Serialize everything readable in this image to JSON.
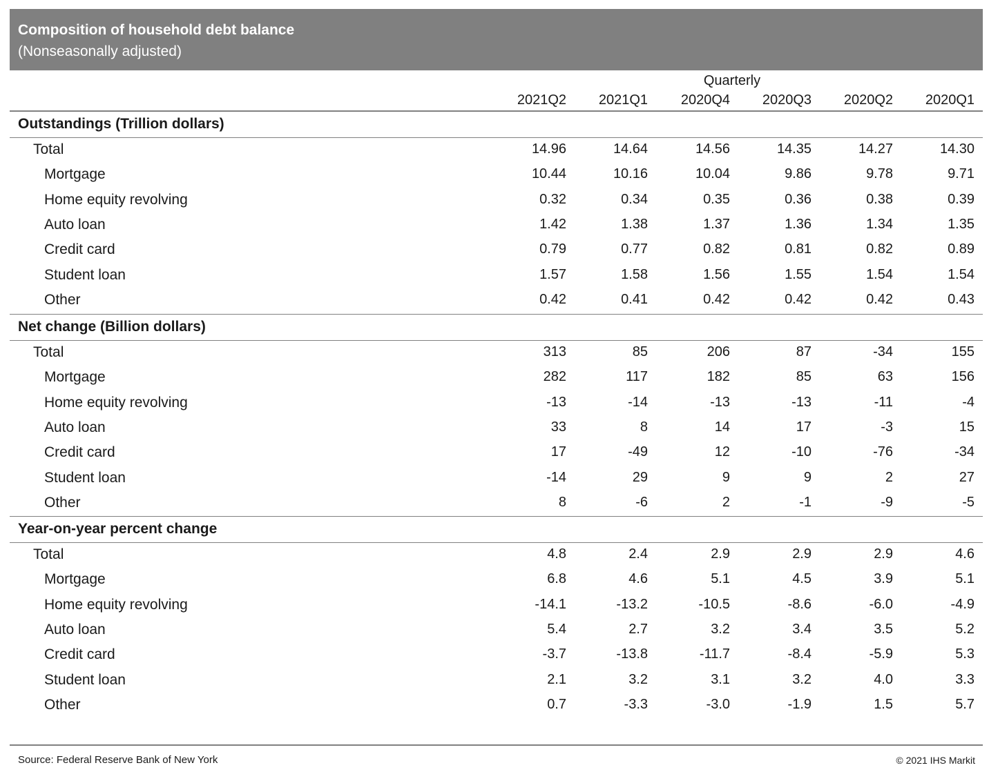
{
  "header": {
    "title": "Composition of household debt balance",
    "subtitle": "(Nonseasonally adjusted)"
  },
  "column_group": "Quarterly",
  "columns": [
    "2021Q2",
    "2021Q1",
    "2020Q4",
    "2020Q3",
    "2020Q2",
    "2020Q1"
  ],
  "sections": [
    {
      "title": "Outstandings (Trillion dollars)",
      "rows": [
        {
          "label": "Total",
          "values": [
            "14.96",
            "14.64",
            "14.56",
            "14.35",
            "14.27",
            "14.30"
          ]
        },
        {
          "label": "Mortgage",
          "values": [
            "10.44",
            "10.16",
            "10.04",
            "9.86",
            "9.78",
            "9.71"
          ]
        },
        {
          "label": "Home equity revolving",
          "values": [
            "0.32",
            "0.34",
            "0.35",
            "0.36",
            "0.38",
            "0.39"
          ]
        },
        {
          "label": "Auto loan",
          "values": [
            "1.42",
            "1.38",
            "1.37",
            "1.36",
            "1.34",
            "1.35"
          ]
        },
        {
          "label": "Credit card",
          "values": [
            "0.79",
            "0.77",
            "0.82",
            "0.81",
            "0.82",
            "0.89"
          ]
        },
        {
          "label": "Student loan",
          "values": [
            "1.57",
            "1.58",
            "1.56",
            "1.55",
            "1.54",
            "1.54"
          ]
        },
        {
          "label": "Other",
          "values": [
            "0.42",
            "0.41",
            "0.42",
            "0.42",
            "0.42",
            "0.43"
          ]
        }
      ]
    },
    {
      "title": "Net change (Billion dollars)",
      "rows": [
        {
          "label": "Total",
          "values": [
            "313",
            "85",
            "206",
            "87",
            "-34",
            "155"
          ]
        },
        {
          "label": "Mortgage",
          "values": [
            "282",
            "117",
            "182",
            "85",
            "63",
            "156"
          ]
        },
        {
          "label": "Home equity revolving",
          "values": [
            "-13",
            "-14",
            "-13",
            "-13",
            "-11",
            "-4"
          ]
        },
        {
          "label": "Auto loan",
          "values": [
            "33",
            "8",
            "14",
            "17",
            "-3",
            "15"
          ]
        },
        {
          "label": "Credit card",
          "values": [
            "17",
            "-49",
            "12",
            "-10",
            "-76",
            "-34"
          ]
        },
        {
          "label": "Student loan",
          "values": [
            "-14",
            "29",
            "9",
            "9",
            "2",
            "27"
          ]
        },
        {
          "label": "Other",
          "values": [
            "8",
            "-6",
            "2",
            "-1",
            "-9",
            "-5"
          ]
        }
      ]
    },
    {
      "title": "Year-on-year percent change",
      "rows": [
        {
          "label": "Total",
          "values": [
            "4.8",
            "2.4",
            "2.9",
            "2.9",
            "2.9",
            "4.6"
          ]
        },
        {
          "label": "Mortgage",
          "values": [
            "6.8",
            "4.6",
            "5.1",
            "4.5",
            "3.9",
            "5.1"
          ]
        },
        {
          "label": "Home equity revolving",
          "values": [
            "-14.1",
            "-13.2",
            "-10.5",
            "-8.6",
            "-6.0",
            "-4.9"
          ]
        },
        {
          "label": "Auto loan",
          "values": [
            "5.4",
            "2.7",
            "3.2",
            "3.4",
            "3.5",
            "5.2"
          ]
        },
        {
          "label": "Credit card",
          "values": [
            "-3.7",
            "-13.8",
            "-11.7",
            "-8.4",
            "-5.9",
            "5.3"
          ]
        },
        {
          "label": "Student loan",
          "values": [
            "2.1",
            "3.2",
            "3.1",
            "3.2",
            "4.0",
            "3.3"
          ]
        },
        {
          "label": "Other",
          "values": [
            "0.7",
            "-3.3",
            "-3.0",
            "-1.9",
            "1.5",
            "5.7"
          ]
        }
      ]
    }
  ],
  "footer": {
    "source": "Source: Federal Reserve Bank of New York",
    "copyright": "© 2021 IHS Markit"
  }
}
